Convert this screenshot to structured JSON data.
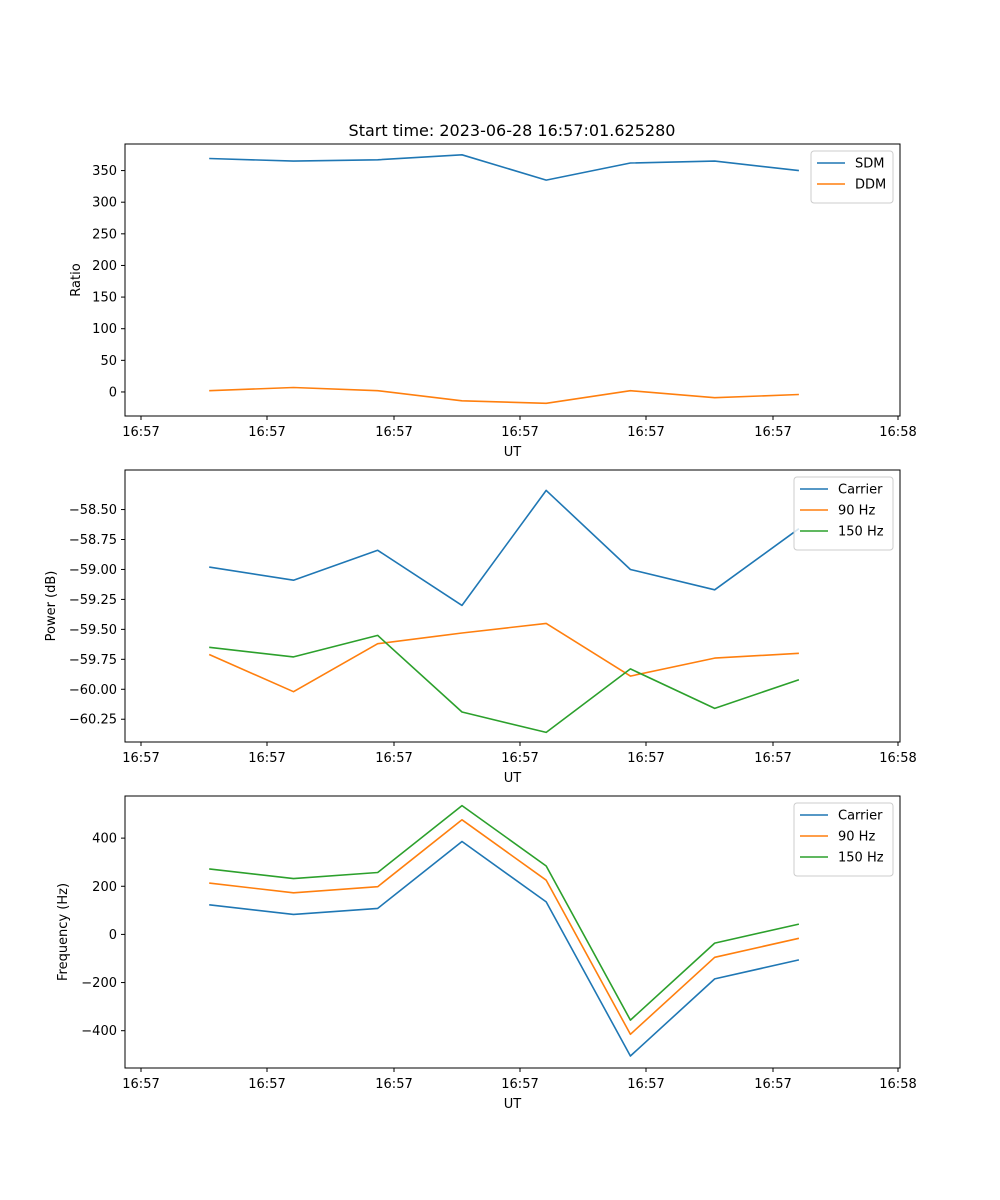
{
  "figure": {
    "title": "Start time: 2023-06-28 16:57:01.625280"
  },
  "colors": {
    "blue": "#1f77b4",
    "orange": "#ff7f0e",
    "green": "#2ca02c"
  },
  "chart_data": [
    {
      "type": "line",
      "title": "Start time: 2023-06-28 16:57:01.625280",
      "xlabel": "UT",
      "ylabel": "Ratio",
      "x_ticks": [
        "16:57",
        "16:57",
        "16:57",
        "16:57",
        "16:57",
        "16:57",
        "16:57",
        "16:58"
      ],
      "x": [
        1,
        2,
        3,
        4,
        5,
        6,
        7,
        8
      ],
      "xlim": [
        0,
        9.2
      ],
      "ylim": [
        -38,
        392
      ],
      "y_ticks": [
        0,
        50,
        100,
        150,
        200,
        250,
        300,
        350
      ],
      "legend_position": "upper right",
      "series": [
        {
          "name": "SDM",
          "color": "#1f77b4",
          "values": [
            369,
            365,
            367,
            375,
            335,
            362,
            365,
            350
          ]
        },
        {
          "name": "DDM",
          "color": "#ff7f0e",
          "values": [
            2,
            7,
            2,
            -14,
            -18,
            2,
            -9,
            -4
          ]
        }
      ]
    },
    {
      "type": "line",
      "xlabel": "UT",
      "ylabel": "Power (dB)",
      "x_ticks": [
        "16:57",
        "16:57",
        "16:57",
        "16:57",
        "16:57",
        "16:57",
        "16:57",
        "16:58"
      ],
      "x": [
        1,
        2,
        3,
        4,
        5,
        6,
        7,
        8
      ],
      "xlim": [
        0,
        9.2
      ],
      "ylim": [
        -60.44,
        -58.17
      ],
      "y_ticks": [
        -60.25,
        -60.0,
        -59.75,
        -59.5,
        -59.25,
        -59.0,
        -58.75,
        -58.5
      ],
      "y_tick_labels": [
        "−60.25",
        "−60.00",
        "−59.75",
        "−59.50",
        "−59.25",
        "−59.00",
        "−58.75",
        "−58.50"
      ],
      "legend_position": "upper right",
      "series": [
        {
          "name": "Carrier",
          "color": "#1f77b4",
          "values": [
            -58.98,
            -59.09,
            -58.84,
            -59.3,
            -58.34,
            -59.0,
            -59.17,
            -58.66
          ]
        },
        {
          "name": "90 Hz",
          "color": "#ff7f0e",
          "values": [
            -59.71,
            -60.02,
            -59.62,
            -59.53,
            -59.45,
            -59.89,
            -59.74,
            -59.7
          ]
        },
        {
          "name": "150 Hz",
          "color": "#2ca02c",
          "values": [
            -59.65,
            -59.73,
            -59.55,
            -60.19,
            -60.36,
            -59.83,
            -60.16,
            -59.92
          ]
        }
      ]
    },
    {
      "type": "line",
      "xlabel": "UT",
      "ylabel": "Frequency (Hz)",
      "x_ticks": [
        "16:57",
        "16:57",
        "16:57",
        "16:57",
        "16:57",
        "16:57",
        "16:57",
        "16:58"
      ],
      "x": [
        1,
        2,
        3,
        4,
        5,
        6,
        7,
        8
      ],
      "xlim": [
        0,
        9.2
      ],
      "ylim": [
        -555,
        575
      ],
      "y_ticks": [
        -400,
        -200,
        0,
        200,
        400
      ],
      "y_tick_labels": [
        "−400",
        "−200",
        "0",
        "200",
        "400"
      ],
      "legend_position": "upper right",
      "series": [
        {
          "name": "Carrier",
          "color": "#1f77b4",
          "values": [
            123,
            83,
            108,
            386,
            135,
            -505,
            -185,
            -106
          ]
        },
        {
          "name": "90 Hz",
          "color": "#ff7f0e",
          "values": [
            213,
            173,
            198,
            476,
            225,
            -415,
            -95,
            -16
          ]
        },
        {
          "name": "150 Hz",
          "color": "#2ca02c",
          "values": [
            272,
            232,
            257,
            535,
            284,
            -356,
            -36,
            43
          ]
        }
      ]
    }
  ]
}
